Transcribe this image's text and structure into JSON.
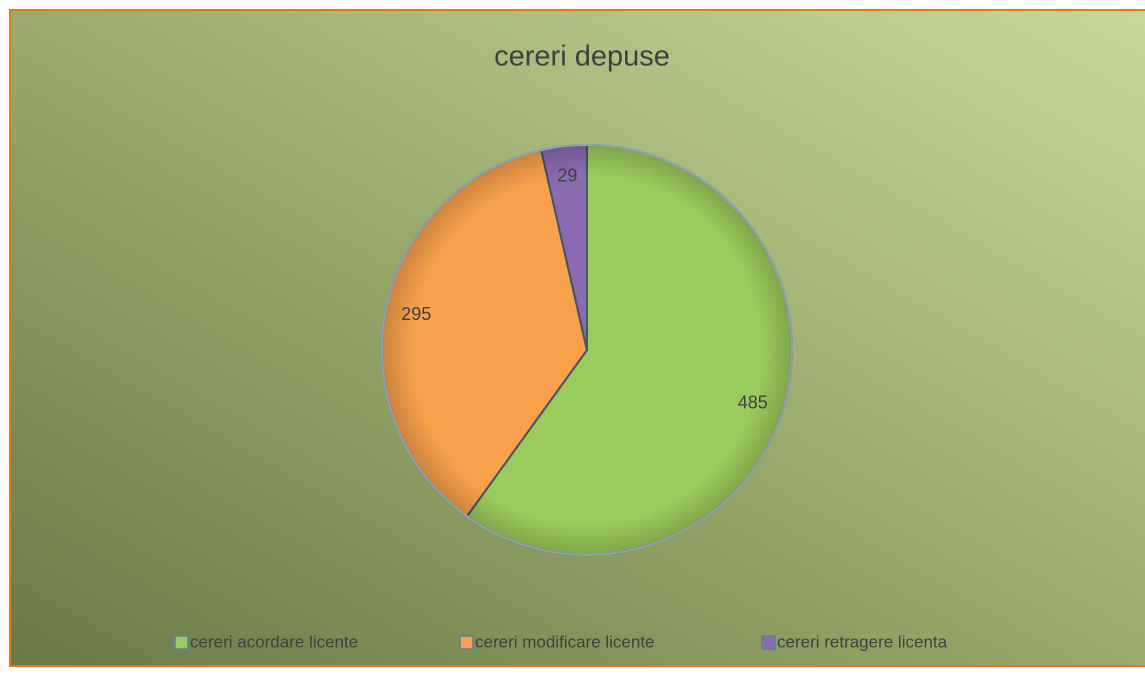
{
  "chart_data": {
    "type": "pie",
    "title": "cereri depuse",
    "categories": [
      "cereri acordare licente",
      "cereri modificare licente",
      "cereri retragere licenta"
    ],
    "values": [
      485,
      295,
      29
    ],
    "colors": [
      "#9bcb5c",
      "#f8a14b",
      "#8a6bb0"
    ],
    "legend": "bottom"
  }
}
